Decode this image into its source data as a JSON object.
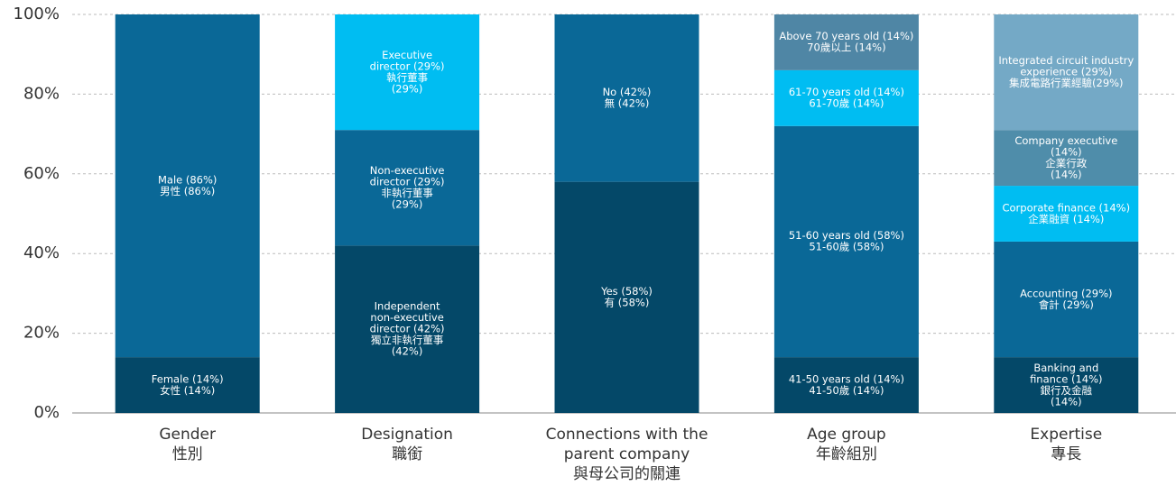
{
  "chart_data": {
    "type": "stacked-bar",
    "ylim": [
      0,
      100
    ],
    "yticks": [
      {
        "value": 0,
        "label": "0%"
      },
      {
        "value": 20,
        "label": "20%"
      },
      {
        "value": 40,
        "label": "40%"
      },
      {
        "value": 60,
        "label": "60%"
      },
      {
        "value": 80,
        "label": "80%"
      },
      {
        "value": 100,
        "label": "100%"
      }
    ],
    "grid": true,
    "groups": [
      {
        "label": [
          "Gender",
          "性別"
        ],
        "segments": [
          {
            "value": 14,
            "color": "#044868",
            "label": [
              "Female (14%)",
              "女性 (14%)"
            ]
          },
          {
            "value": 86,
            "color": "#0a6897",
            "label": [
              "Male (86%)",
              "男性 (86%)"
            ]
          }
        ]
      },
      {
        "label": [
          "Designation",
          "職銜"
        ],
        "segments": [
          {
            "value": 42,
            "color": "#044868",
            "label": [
              "Independent",
              "non-executive",
              "director (42%)",
              "獨立非執行董事",
              "(42%)"
            ]
          },
          {
            "value": 29,
            "color": "#0a6897",
            "label": [
              "Non-executive",
              "director (29%)",
              "非執行董事",
              "(29%)"
            ]
          },
          {
            "value": 29,
            "color": "#00bdf2",
            "label": [
              "Executive",
              "director (29%)",
              "執行董事",
              "(29%)"
            ]
          }
        ]
      },
      {
        "label": [
          "Connections with the",
          "parent company",
          "與母公司的關連"
        ],
        "segments": [
          {
            "value": 58,
            "color": "#044868",
            "label": [
              "Yes (58%)",
              "有 (58%)"
            ]
          },
          {
            "value": 42,
            "color": "#0a6897",
            "label": [
              "No (42%)",
              "無 (42%)"
            ]
          }
        ]
      },
      {
        "label": [
          "Age group",
          "年齡組別"
        ],
        "segments": [
          {
            "value": 14,
            "color": "#044868",
            "label": [
              "41-50 years old (14%)",
              "41-50歲 (14%)"
            ]
          },
          {
            "value": 58,
            "color": "#0a6897",
            "label": [
              "51-60 years old (58%)",
              "51-60歲 (58%)"
            ]
          },
          {
            "value": 14,
            "color": "#00bdf2",
            "label": [
              "61-70 years old (14%)",
              "61-70歲 (14%)"
            ]
          },
          {
            "value": 14,
            "color": "#4f86a5",
            "label": [
              "Above 70 years old (14%)",
              "70歲以上 (14%)"
            ]
          }
        ]
      },
      {
        "label": [
          "Expertise",
          "專長"
        ],
        "segments": [
          {
            "value": 14,
            "color": "#044868",
            "label": [
              "Banking and",
              "finance (14%)",
              "銀行及金融",
              "(14%)"
            ]
          },
          {
            "value": 29,
            "color": "#0a6897",
            "label": [
              "Accounting (29%)",
              "會計 (29%)"
            ]
          },
          {
            "value": 14,
            "color": "#00bdf2",
            "label": [
              "Corporate finance (14%)",
              "企業融資 (14%)"
            ]
          },
          {
            "value": 14,
            "color": "#4f8daa",
            "label": [
              "Company executive",
              "(14%)",
              "企業行政",
              "(14%)"
            ]
          },
          {
            "value": 29,
            "color": "#74a9c6",
            "label": [
              "Integrated circuit industry",
              "experience (29%)",
              "集成電路行業經驗(29%)"
            ]
          }
        ]
      }
    ]
  }
}
